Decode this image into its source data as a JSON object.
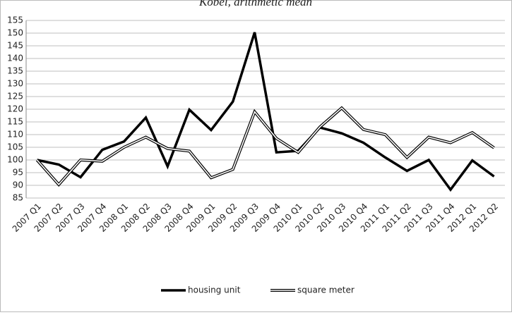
{
  "chart_data": {
    "type": "line",
    "title": "Kobel, arithmetic mean",
    "categories": [
      "2007 Q1",
      "2007 Q2",
      "2007 Q3",
      "2007 Q4",
      "2008 Q1",
      "2008 Q2",
      "2008 Q3",
      "2008 Q4",
      "2009 Q1",
      "2009 Q2",
      "2009 Q3",
      "2009 Q4",
      "2010 Q1",
      "2010 Q2",
      "2010 Q3",
      "2010 Q4",
      "2011 Q1",
      "2011 Q2",
      "2011 Q3",
      "2011 Q4",
      "2012 Q1",
      "2012 Q2"
    ],
    "series": [
      {
        "name": "housing unit",
        "color": "#000000",
        "values": [
          100,
          98.2,
          93.2,
          104,
          107.3,
          116.7,
          97.5,
          119.8,
          111.8,
          123,
          150.3,
          103,
          103.6,
          112.8,
          110.5,
          106.8,
          101,
          95.7,
          100,
          88.3,
          99.8,
          93.5
        ]
      },
      {
        "name": "square meter",
        "color": "#ffffff",
        "values": [
          100,
          90.3,
          100,
          99.5,
          105,
          109,
          104.5,
          103.5,
          93,
          96.3,
          119,
          108.5,
          103,
          113,
          120.5,
          112,
          110,
          101,
          109,
          106.8,
          110.8,
          104.8
        ]
      }
    ],
    "ylim": [
      85,
      155
    ],
    "yticks": [
      85,
      90,
      95,
      100,
      105,
      110,
      115,
      120,
      125,
      130,
      135,
      140,
      145,
      150,
      155
    ],
    "grid": true,
    "legend": "bottom"
  }
}
